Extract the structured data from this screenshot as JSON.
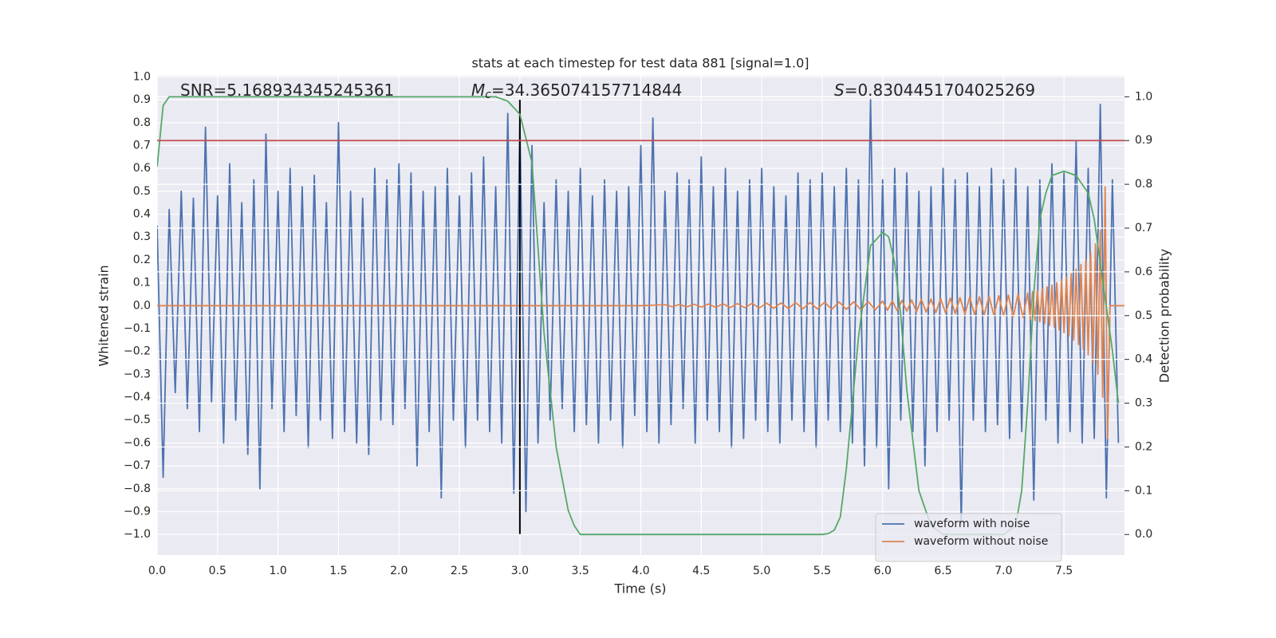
{
  "chart_data": {
    "type": "line",
    "title": "stats at each timestep for test data 881 [signal=1.0]",
    "xlabel": "Time (s)",
    "ylabel": "Whitened strain",
    "y2label": "Detection probability",
    "xlim": [
      0,
      8.0
    ],
    "ylim": [
      -1.09,
      1.005
    ],
    "y2lim": [
      -0.047,
      1.048
    ],
    "xticks": [
      {
        "value": 0,
        "label": "0.0"
      },
      0.5,
      {
        "value": 1,
        "label": "1.0"
      },
      1.5,
      {
        "value": 2,
        "label": "2.0"
      },
      2.5,
      {
        "value": 3,
        "label": "3.0"
      },
      3.5,
      {
        "value": 4,
        "label": "4.0"
      },
      4.5,
      {
        "value": 5,
        "label": "5.0"
      },
      5.5,
      {
        "value": 6,
        "label": "6.0"
      },
      6.5,
      {
        "value": 7,
        "label": "7.0"
      },
      7.5
    ],
    "yticks": [
      {
        "value": 1,
        "label": "1.0"
      },
      0.9,
      0.8,
      0.7,
      0.6,
      0.5,
      0.4,
      0.3,
      0.2,
      0.1,
      {
        "value": 0,
        "label": "0.0"
      },
      {
        "value": -0.1,
        "label": "−0.1"
      },
      {
        "value": -0.2,
        "label": "−0.2"
      },
      {
        "value": -0.3,
        "label": "−0.3"
      },
      {
        "value": -0.4,
        "label": "−0.4"
      },
      {
        "value": -0.5,
        "label": "−0.5"
      },
      {
        "value": -0.6,
        "label": "−0.6"
      },
      {
        "value": -0.7,
        "label": "−0.7"
      },
      {
        "value": -0.8,
        "label": "−0.8"
      },
      {
        "value": -0.9,
        "label": "−0.9"
      },
      {
        "value": -1,
        "label": "−1.0"
      }
    ],
    "y2ticks": [
      {
        "value": 0,
        "label": "0.0"
      },
      0.1,
      0.2,
      0.3,
      0.4,
      0.5,
      0.6,
      0.7,
      0.8,
      0.9,
      {
        "value": 1,
        "label": "1.0"
      }
    ],
    "grid": true,
    "legend": "lower right",
    "series": [
      {
        "name": "waveform with noise",
        "color": "#4c72b0",
        "x": [
          0,
          0.05,
          0.1,
          0.15,
          0.2,
          0.25,
          0.3,
          0.35,
          0.4,
          0.45,
          0.5,
          0.55,
          0.6,
          0.65,
          0.7,
          0.75,
          0.8,
          0.85,
          0.9,
          0.95,
          1.0,
          1.05,
          1.1,
          1.15,
          1.2,
          1.25,
          1.3,
          1.35,
          1.4,
          1.45,
          1.5,
          1.55,
          1.6,
          1.65,
          1.7,
          1.75,
          1.8,
          1.85,
          1.9,
          1.95,
          2.0,
          2.05,
          2.1,
          2.15,
          2.2,
          2.25,
          2.3,
          2.35,
          2.4,
          2.45,
          2.5,
          2.55,
          2.6,
          2.65,
          2.7,
          2.75,
          2.8,
          2.85,
          2.9,
          2.95,
          3.0,
          3.05,
          3.1,
          3.15,
          3.2,
          3.25,
          3.3,
          3.35,
          3.4,
          3.45,
          3.5,
          3.55,
          3.6,
          3.65,
          3.7,
          3.75,
          3.8,
          3.85,
          3.9,
          3.95,
          4.0,
          4.05,
          4.1,
          4.15,
          4.2,
          4.25,
          4.3,
          4.35,
          4.4,
          4.45,
          4.5,
          4.55,
          4.6,
          4.65,
          4.7,
          4.75,
          4.8,
          4.85,
          4.9,
          4.95,
          5.0,
          5.05,
          5.1,
          5.15,
          5.2,
          5.25,
          5.3,
          5.35,
          5.4,
          5.45,
          5.5,
          5.55,
          5.6,
          5.65,
          5.7,
          5.75,
          5.8,
          5.85,
          5.9,
          5.95,
          6.0,
          6.05,
          6.1,
          6.15,
          6.2,
          6.25,
          6.3,
          6.35,
          6.4,
          6.45,
          6.5,
          6.55,
          6.6,
          6.65,
          6.7,
          6.75,
          6.8,
          6.85,
          6.9,
          6.95,
          7.0,
          7.05,
          7.1,
          7.15,
          7.2,
          7.25,
          7.3,
          7.35,
          7.4,
          7.45,
          7.5,
          7.55,
          7.6,
          7.65,
          7.7,
          7.75,
          7.8,
          7.85,
          7.9,
          7.95
        ],
        "values": [
          0.35,
          -0.75,
          0.42,
          -0.38,
          0.5,
          -0.45,
          0.47,
          -0.55,
          0.78,
          -0.42,
          0.48,
          -0.6,
          0.62,
          -0.5,
          0.45,
          -0.65,
          0.55,
          -0.8,
          0.75,
          -0.45,
          0.5,
          -0.55,
          0.6,
          -0.48,
          0.52,
          -0.62,
          0.57,
          -0.5,
          0.45,
          -0.58,
          0.8,
          -0.55,
          0.5,
          -0.6,
          0.47,
          -0.65,
          0.6,
          -0.5,
          0.55,
          -0.52,
          0.62,
          -0.45,
          0.58,
          -0.7,
          0.5,
          -0.55,
          0.52,
          -0.84,
          0.6,
          -0.5,
          0.48,
          -0.62,
          0.58,
          -0.5,
          0.65,
          -0.55,
          0.52,
          -0.6,
          0.84,
          -0.82,
          0.8,
          -0.9,
          0.7,
          -0.6,
          0.45,
          -0.5,
          0.55,
          -0.45,
          0.5,
          -0.55,
          0.6,
          -0.52,
          0.48,
          -0.6,
          0.55,
          -0.5,
          0.5,
          -0.62,
          0.52,
          -0.48,
          0.7,
          -0.55,
          0.82,
          -0.6,
          0.5,
          -0.52,
          0.58,
          -0.45,
          0.55,
          -0.6,
          0.65,
          -0.5,
          0.52,
          -0.55,
          0.6,
          -0.62,
          0.5,
          -0.58,
          0.55,
          -0.5,
          0.6,
          -0.55,
          0.52,
          -0.6,
          0.48,
          -0.5,
          0.58,
          -0.55,
          0.55,
          -0.62,
          0.58,
          -0.5,
          0.52,
          -0.55,
          0.6,
          -0.6,
          0.55,
          -0.7,
          0.9,
          -0.62,
          0.55,
          -0.8,
          0.6,
          -0.5,
          0.58,
          -0.55,
          0.5,
          -0.7,
          0.52,
          -0.55,
          0.6,
          -0.5,
          0.55,
          -0.95,
          0.58,
          -0.5,
          0.52,
          -0.55,
          0.6,
          -0.52,
          0.55,
          -0.58,
          0.6,
          -0.55,
          0.52,
          -0.85,
          0.55,
          -0.5,
          0.62,
          -0.6,
          0.58,
          -0.55,
          0.72,
          -0.6,
          0.6,
          -0.58,
          0.88,
          -0.84,
          0.55,
          -0.6
        ]
      },
      {
        "name": "waveform without noise",
        "color": "#dd8452",
        "x": [
          0,
          4.0,
          4.2,
          4.26,
          4.32,
          4.38,
          4.44,
          4.5,
          4.56,
          4.62,
          4.68,
          4.74,
          4.8,
          4.86,
          4.92,
          4.98,
          5.04,
          5.1,
          5.16,
          5.22,
          5.28,
          5.34,
          5.4,
          5.46,
          5.52,
          5.58,
          5.64,
          5.7,
          5.76,
          5.82,
          5.88,
          5.94,
          6.0,
          6.04,
          6.08,
          6.12,
          6.16,
          6.2,
          6.24,
          6.28,
          6.32,
          6.36,
          6.4,
          6.44,
          6.48,
          6.52,
          6.56,
          6.6,
          6.64,
          6.68,
          6.72,
          6.76,
          6.8,
          6.84,
          6.88,
          6.92,
          6.96,
          7.0,
          7.04,
          7.08,
          7.12,
          7.16,
          7.2,
          7.22,
          7.24,
          7.26,
          7.28,
          7.3,
          7.32,
          7.34,
          7.36,
          7.38,
          7.4,
          7.42,
          7.44,
          7.46,
          7.48,
          7.5,
          7.52,
          7.54,
          7.56,
          7.58,
          7.6,
          7.62,
          7.64,
          7.66,
          7.68,
          7.7,
          7.72,
          7.74,
          7.76,
          7.78,
          7.8,
          7.82,
          7.84,
          7.86,
          7.88,
          8.0
        ],
        "values": [
          0,
          0,
          0.004,
          -0.004,
          0.005,
          -0.005,
          0.006,
          -0.006,
          0.007,
          -0.007,
          0.008,
          -0.008,
          0.009,
          -0.009,
          0.01,
          -0.01,
          0.011,
          -0.011,
          0.012,
          -0.012,
          0.013,
          -0.013,
          0.014,
          -0.014,
          0.015,
          -0.015,
          0.016,
          -0.016,
          0.017,
          -0.017,
          0.018,
          -0.018,
          0.02,
          -0.02,
          0.021,
          -0.022,
          0.023,
          -0.024,
          0.025,
          -0.026,
          0.027,
          -0.028,
          0.029,
          -0.03,
          0.031,
          -0.032,
          0.033,
          -0.034,
          0.035,
          -0.036,
          0.037,
          -0.038,
          0.039,
          -0.04,
          0.041,
          -0.042,
          0.043,
          -0.044,
          0.046,
          -0.048,
          0.05,
          -0.052,
          0.055,
          -0.058,
          0.061,
          -0.064,
          0.067,
          -0.07,
          0.074,
          -0.078,
          0.082,
          -0.086,
          0.09,
          -0.095,
          0.1,
          -0.106,
          0.112,
          -0.118,
          0.125,
          -0.132,
          0.14,
          -0.15,
          0.16,
          -0.17,
          0.18,
          -0.19,
          0.2,
          -0.215,
          0.23,
          -0.25,
          0.27,
          -0.3,
          0.33,
          -0.4,
          0.52,
          -0.58,
          0,
          0
        ]
      },
      {
        "color": "#55a868",
        "axis": "y2",
        "x": [
          0,
          0.05,
          0.1,
          0.5,
          1.0,
          1.5,
          2.0,
          2.5,
          2.8,
          2.9,
          3.0,
          3.1,
          3.2,
          3.3,
          3.4,
          3.45,
          3.5,
          4.0,
          4.5,
          5.0,
          5.5,
          5.55,
          5.6,
          5.65,
          5.7,
          5.8,
          5.9,
          6.0,
          6.05,
          6.1,
          6.15,
          6.2,
          6.3,
          6.4,
          6.5,
          7.0,
          7.1,
          7.15,
          7.2,
          7.25,
          7.3,
          7.35,
          7.4,
          7.5,
          7.6,
          7.7,
          7.75,
          7.8,
          7.85,
          7.9,
          7.95
        ],
        "values": [
          0.84,
          0.98,
          1.0,
          1.0,
          1.0,
          1.0,
          1.0,
          1.0,
          1.0,
          0.99,
          0.96,
          0.85,
          0.46,
          0.2,
          0.055,
          0.02,
          0.0,
          0.0,
          0.0,
          0.0,
          0.0,
          0.002,
          0.01,
          0.04,
          0.15,
          0.45,
          0.66,
          0.69,
          0.68,
          0.62,
          0.5,
          0.33,
          0.1,
          0.02,
          0.0,
          0.0,
          0.02,
          0.1,
          0.3,
          0.55,
          0.72,
          0.78,
          0.82,
          0.83,
          0.82,
          0.78,
          0.72,
          0.62,
          0.52,
          0.42,
          0.3
        ]
      }
    ],
    "hlines": [
      {
        "y": 0.9,
        "axis": "y2",
        "color": "#c44e52"
      }
    ],
    "vlines": [
      {
        "x": 3.0,
        "ymin": -1.0,
        "ymax": 0.9,
        "color": "#000000"
      }
    ],
    "annotations": [
      {
        "text": "SNR=5.168934345245361"
      },
      {
        "symbol": "M",
        "sub": "c",
        "text": "=34.365074157714844"
      },
      {
        "symbol": "S",
        "text": "=0.8304451704025269"
      }
    ]
  }
}
